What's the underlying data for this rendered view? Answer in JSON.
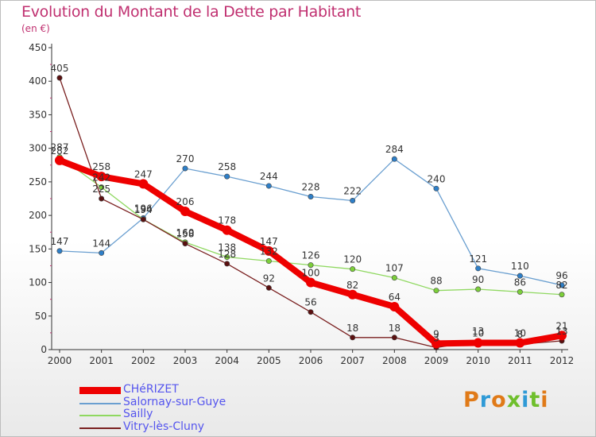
{
  "header": {
    "title": "Evolution du Montant de la Dette par Habitant",
    "unit": "(en €)"
  },
  "logo": {
    "text": "Proxiti",
    "colors": [
      "#e07a18",
      "#2f9ad6",
      "#e07a18",
      "#6fbf2c",
      "#2f9ad6",
      "#6fbf2c",
      "#e07a18"
    ]
  },
  "chart_data": {
    "type": "line",
    "title": "Evolution du Montant de la Dette par Habitant",
    "ylabel": "(en €)",
    "xlabel": "",
    "ylim": [
      0,
      450
    ],
    "yticks": [
      "0",
      "50",
      "100",
      "150",
      "200",
      "250",
      "300",
      "350",
      "400",
      "450"
    ],
    "x": [
      "2000",
      "2001",
      "2002",
      "2003",
      "2004",
      "2005",
      "2006",
      "2007",
      "2008",
      "2009",
      "2010",
      "2011",
      "2012"
    ],
    "grid": false,
    "legend_position": "bottom-left",
    "series": [
      {
        "name": "CHéRIZET",
        "color": "#ee0000",
        "width": 8,
        "values": [
          282,
          258,
          247,
          206,
          178,
          147,
          100,
          82,
          64,
          9,
          10,
          10,
          21
        ],
        "labels": [
          "282",
          "258",
          "247",
          "206",
          "178",
          "147",
          "100",
          "82",
          "64",
          "9",
          "10",
          "10",
          "21"
        ]
      },
      {
        "name": "Salornay-sur-Guye",
        "color": "#6a9fd0",
        "width": 1.3,
        "values": [
          147,
          144,
          196,
          270,
          258,
          244,
          228,
          222,
          284,
          240,
          121,
          110,
          96
        ],
        "labels": [
          "147",
          "144",
          "196",
          "270",
          "258",
          "244",
          "228",
          "222",
          "284",
          "240",
          "121",
          "110",
          "96"
        ]
      },
      {
        "name": "Sailly",
        "color": "#8fd860",
        "width": 1.3,
        "values": [
          287,
          242,
          194,
          160,
          138,
          132,
          126,
          120,
          107,
          88,
          90,
          86,
          82
        ],
        "labels": [
          "287",
          "242",
          "194",
          "160",
          "138",
          "132",
          "126",
          "120",
          "107",
          "88",
          "90",
          "86",
          "82"
        ]
      },
      {
        "name": "Vitry-lès-Cluny",
        "color": "#7a2020",
        "width": 1.3,
        "values": [
          405,
          225,
          194,
          158,
          128,
          92,
          56,
          18,
          18,
          3,
          13,
          8,
          13
        ],
        "labels": [
          "405",
          "225",
          "194",
          "158",
          "128",
          "92",
          "56",
          "18",
          "18",
          "3",
          "13",
          "8",
          "13"
        ]
      }
    ]
  }
}
